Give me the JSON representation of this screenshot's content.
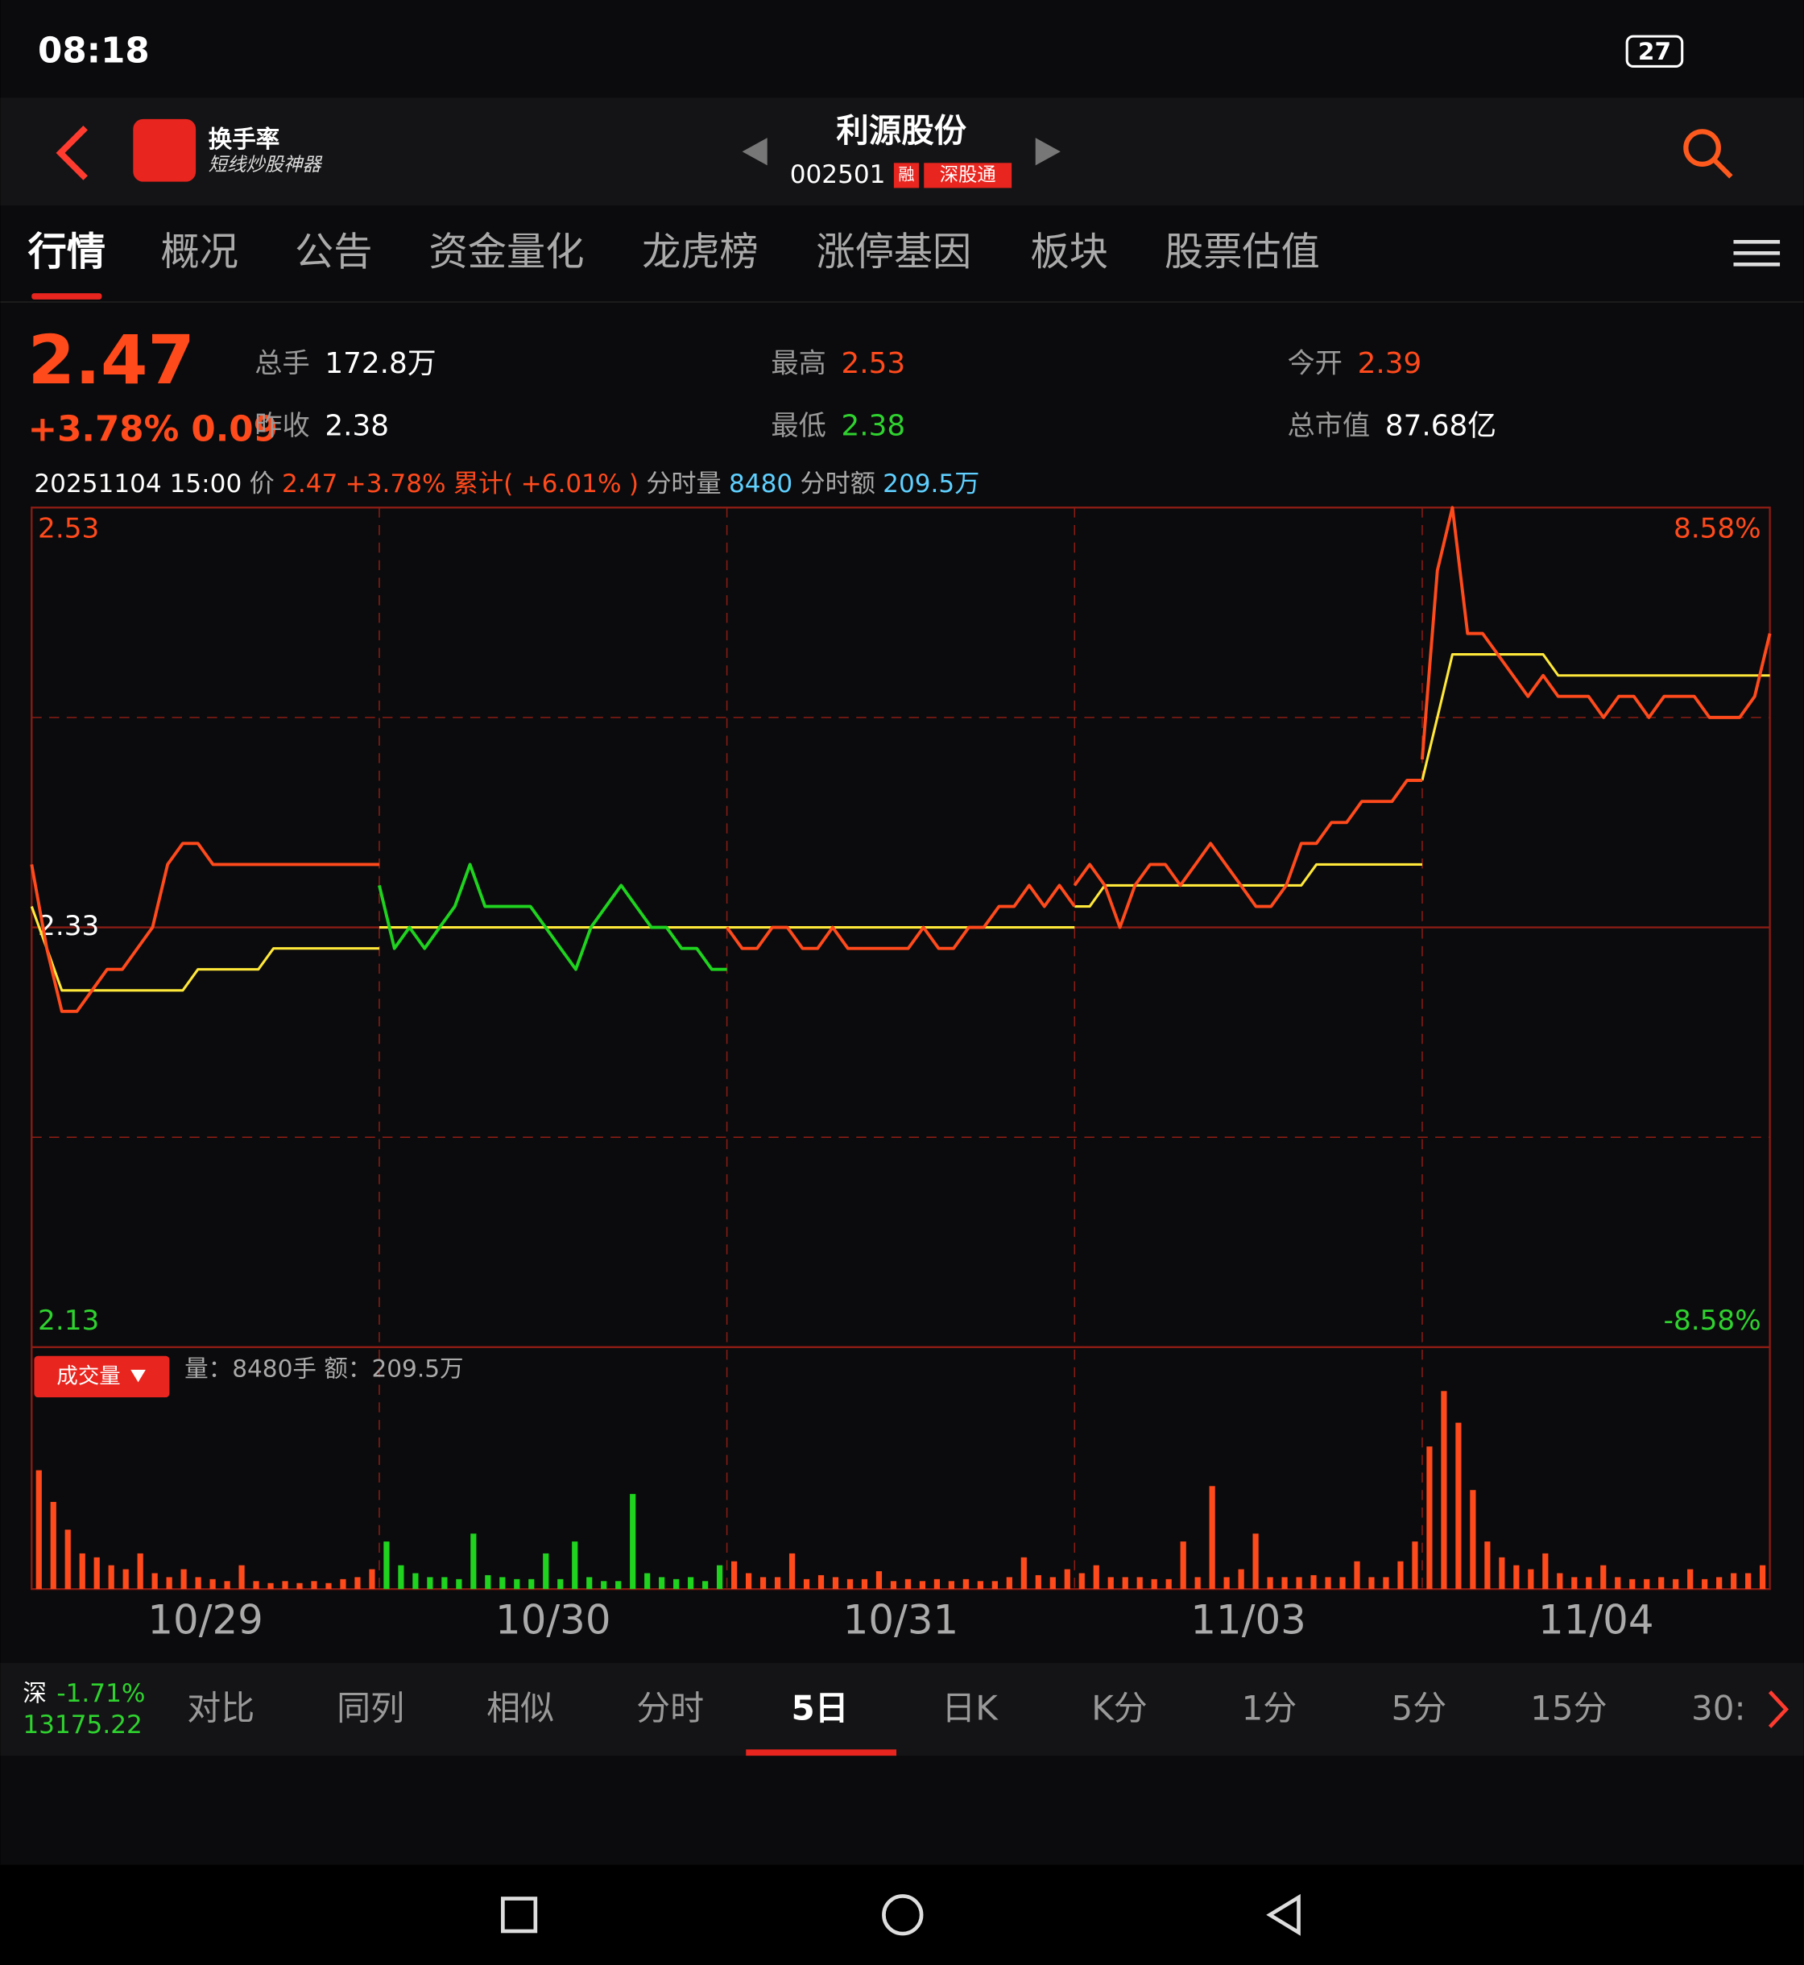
{
  "status_bar": {
    "time": "08:18",
    "battery": "27"
  },
  "header": {
    "app_name": "换手率",
    "app_slogan": "短线炒股神器",
    "stock_name": "利源股份",
    "stock_code": "002501",
    "badge_margin": "融",
    "badge_connect": "深股通"
  },
  "tabs": [
    "行情",
    "概况",
    "公告",
    "资金量化",
    "龙虎榜",
    "涨停基因",
    "板块",
    "股票估值"
  ],
  "quote": {
    "price": "2.47",
    "change": "+3.78% 0.09",
    "fields": [
      {
        "label": "总手",
        "value": "172.8万"
      },
      {
        "label": "最高",
        "value": "2.53"
      },
      {
        "label": "今开",
        "value": "2.39"
      },
      {
        "label": "昨收",
        "value": "2.38"
      },
      {
        "label": "最低",
        "value": "2.38"
      },
      {
        "label": "总市值",
        "value": "87.68亿"
      }
    ]
  },
  "info_line": {
    "datetime": "20251104 15:00",
    "price_label": "价",
    "price": "2.47",
    "change": "+3.78%",
    "cum_label": "累计(",
    "cum": "+6.01%",
    "cum_close": ")",
    "vol_label": "分时量",
    "vol": "8480",
    "amt_label": "分时额",
    "amt": "209.5万"
  },
  "volume_panel": {
    "button": "成交量",
    "summary": "量：8480手  额：209.5万"
  },
  "chart_data": {
    "type": "line",
    "x_labels": [
      "10/29",
      "10/30",
      "10/31",
      "11/03",
      "11/04"
    ],
    "ylim": [
      2.13,
      2.53
    ],
    "yticks": [
      2.13,
      2.33,
      2.53
    ],
    "y2lim": [
      -8.58,
      8.58
    ],
    "y2ticks": [
      {
        "value": -8.58,
        "label": "-8.58%"
      },
      {
        "value": 8.58,
        "label": "8.58%"
      }
    ],
    "grid": true,
    "series": [
      {
        "color": "#ff4a1c",
        "values": [
          2.36,
          2.32,
          2.29,
          2.29,
          2.3,
          2.31,
          2.31,
          2.32,
          2.33,
          2.36,
          2.37,
          2.37,
          2.36,
          2.36,
          2.36,
          2.36,
          2.36,
          2.36,
          2.36,
          2.36,
          2.36,
          2.36,
          2.36,
          2.36
        ]
      },
      {
        "color": "#1fd31f",
        "values": [
          2.35,
          2.32,
          2.33,
          2.32,
          2.33,
          2.34,
          2.36,
          2.34,
          2.34,
          2.34,
          2.34,
          2.33,
          2.32,
          2.31,
          2.33,
          2.34,
          2.35,
          2.34,
          2.33,
          2.33,
          2.32,
          2.32,
          2.31,
          2.31
        ]
      },
      {
        "color": "#ff4a1c",
        "values": [
          2.33,
          2.32,
          2.32,
          2.33,
          2.33,
          2.32,
          2.32,
          2.33,
          2.32,
          2.32,
          2.32,
          2.32,
          2.32,
          2.33,
          2.32,
          2.32,
          2.33,
          2.33,
          2.34,
          2.34,
          2.35,
          2.34,
          2.35,
          2.34
        ]
      },
      {
        "color": "#ff4a1c",
        "values": [
          2.35,
          2.36,
          2.35,
          2.33,
          2.35,
          2.36,
          2.36,
          2.35,
          2.36,
          2.37,
          2.36,
          2.35,
          2.34,
          2.34,
          2.35,
          2.37,
          2.37,
          2.38,
          2.38,
          2.39,
          2.39,
          2.39,
          2.4,
          2.4
        ]
      },
      {
        "color": "#ff4a1c",
        "values": [
          2.41,
          2.5,
          2.53,
          2.47,
          2.47,
          2.46,
          2.45,
          2.44,
          2.45,
          2.44,
          2.44,
          2.44,
          2.43,
          2.44,
          2.44,
          2.43,
          2.44,
          2.44,
          2.44,
          2.43,
          2.43,
          2.43,
          2.44,
          2.47
        ]
      }
    ],
    "avg_series": {
      "color": "#ffe83a",
      "days": [
        [
          2.34,
          2.32,
          2.3,
          2.3,
          2.3,
          2.3,
          2.3,
          2.3,
          2.3,
          2.3,
          2.3,
          2.31,
          2.31,
          2.31,
          2.31,
          2.31,
          2.32,
          2.32,
          2.32,
          2.32,
          2.32,
          2.32,
          2.32,
          2.32
        ],
        [
          2.33,
          2.33,
          2.33,
          2.33,
          2.33,
          2.33,
          2.33,
          2.33,
          2.33,
          2.33,
          2.33,
          2.33,
          2.33,
          2.33,
          2.33,
          2.33,
          2.33,
          2.33,
          2.33,
          2.33,
          2.33,
          2.33,
          2.33,
          2.33
        ],
        [
          2.33,
          2.33,
          2.33,
          2.33,
          2.33,
          2.33,
          2.33,
          2.33,
          2.33,
          2.33,
          2.33,
          2.33,
          2.33,
          2.33,
          2.33,
          2.33,
          2.33,
          2.33,
          2.33,
          2.33,
          2.33,
          2.33,
          2.33,
          2.33
        ],
        [
          2.34,
          2.34,
          2.35,
          2.35,
          2.35,
          2.35,
          2.35,
          2.35,
          2.35,
          2.35,
          2.35,
          2.35,
          2.35,
          2.35,
          2.35,
          2.35,
          2.36,
          2.36,
          2.36,
          2.36,
          2.36,
          2.36,
          2.36,
          2.36
        ],
        [
          2.4,
          2.43,
          2.46,
          2.46,
          2.46,
          2.46,
          2.46,
          2.46,
          2.46,
          2.45,
          2.45,
          2.45,
          2.45,
          2.45,
          2.45,
          2.45,
          2.45,
          2.45,
          2.45,
          2.45,
          2.45,
          2.45,
          2.45,
          2.45
        ]
      ]
    },
    "volume": [
      30000,
      22000,
      15000,
      9000,
      8000,
      6000,
      5000,
      9000,
      4000,
      3000,
      5000,
      3000,
      2500,
      2000,
      6000,
      2000,
      1500,
      2000,
      1500,
      2000,
      1500,
      2500,
      3000,
      5000,
      12000,
      6000,
      4000,
      3000,
      3000,
      2500,
      14000,
      3500,
      3000,
      2500,
      2500,
      9000,
      2500,
      12000,
      3000,
      2000,
      2000,
      24000,
      4000,
      3000,
      2500,
      3000,
      2000,
      6000,
      7000,
      4000,
      3000,
      3000,
      9000,
      2500,
      3500,
      3000,
      2500,
      2500,
      4500,
      2000,
      2500,
      2000,
      2500,
      2000,
      2500,
      2000,
      2000,
      3000,
      8000,
      3500,
      3000,
      5000,
      4000,
      6000,
      3000,
      3000,
      3000,
      2500,
      2500,
      12000,
      3000,
      26000,
      3000,
      5000,
      14000,
      3000,
      3000,
      3000,
      3500,
      3000,
      3000,
      7000,
      3000,
      3000,
      7000,
      12000,
      36000,
      50000,
      42000,
      25000,
      12000,
      8000,
      6000,
      5000,
      9000,
      4000,
      3000,
      3000,
      6000,
      3000,
      2500,
      2500,
      3000,
      2500,
      5000,
      2500,
      3000,
      4000,
      4000,
      6000
    ]
  },
  "bottom": {
    "index_name": "深",
    "index_change": "-1.71%",
    "index_value": "13175.22",
    "tabs": [
      "对比",
      "同列",
      "相似",
      "分时",
      "5日",
      "日K",
      "K分",
      "1分",
      "5分",
      "15分",
      "30:"
    ]
  }
}
